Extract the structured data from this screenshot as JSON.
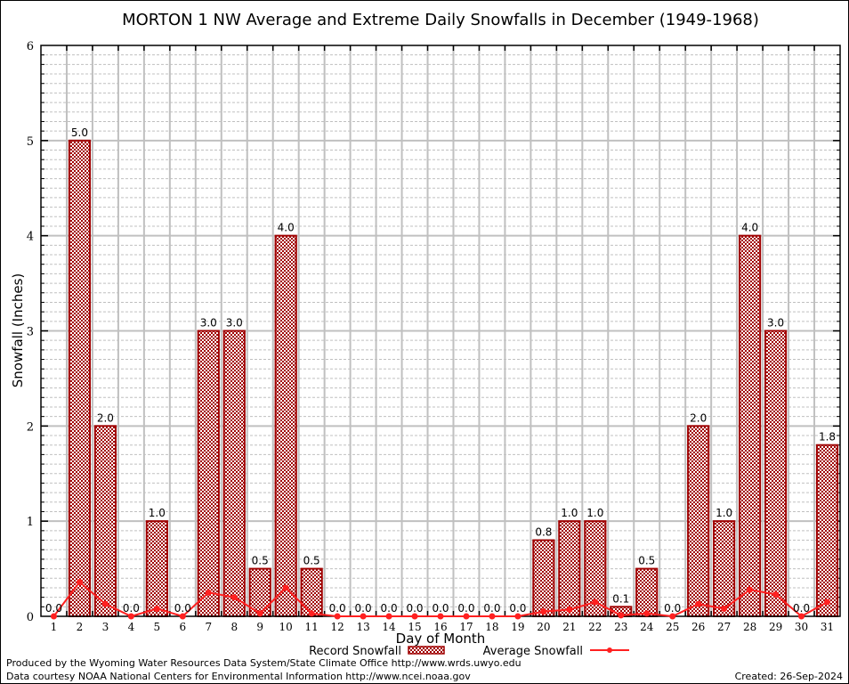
{
  "chart_data": {
    "type": "bar",
    "title": "MORTON 1 NW Average and Extreme Daily Snowfalls in December (1949-1968)",
    "xlabel": "Day of Month",
    "ylabel": "Snowfall (Inches)",
    "ylim": [
      0,
      6
    ],
    "yticks": [
      "0",
      "1",
      "2",
      "3",
      "4",
      "5",
      "6"
    ],
    "grid": true,
    "categories": [
      "1",
      "2",
      "3",
      "4",
      "5",
      "6",
      "7",
      "8",
      "9",
      "10",
      "11",
      "12",
      "13",
      "14",
      "15",
      "16",
      "17",
      "18",
      "19",
      "20",
      "21",
      "22",
      "23",
      "24",
      "25",
      "26",
      "27",
      "28",
      "29",
      "30",
      "31"
    ],
    "series": [
      {
        "name": "Record Snowfall",
        "kind": "bar",
        "color": "#a00000",
        "values": [
          0.0,
          5.0,
          2.0,
          0.0,
          1.0,
          0.0,
          3.0,
          3.0,
          0.5,
          4.0,
          0.5,
          0.0,
          0.0,
          0.0,
          0.0,
          0.0,
          0.0,
          0.0,
          0.0,
          0.8,
          1.0,
          1.0,
          0.1,
          0.5,
          0.0,
          2.0,
          1.0,
          4.0,
          3.0,
          0.0,
          1.8
        ],
        "labels": [
          "0.0",
          "5.0",
          "2.0",
          "0.0",
          "1.0",
          "0.0",
          "3.0",
          "3.0",
          "0.5",
          "4.0",
          "0.5",
          "0.0",
          "0.0",
          "0.0",
          "0.0",
          "0.0",
          "0.0",
          "0.0",
          "0.0",
          "0.8",
          "1.0",
          "1.0",
          "0.1",
          "0.5",
          "0.0",
          "2.0",
          "1.0",
          "4.0",
          "3.0",
          "0.0",
          "1.8"
        ]
      },
      {
        "name": "Average Snowfall",
        "kind": "line",
        "color": "#ff2020",
        "values": [
          0.0,
          0.36,
          0.13,
          0.0,
          0.08,
          0.0,
          0.25,
          0.2,
          0.03,
          0.3,
          0.03,
          0.0,
          0.0,
          0.0,
          0.0,
          0.0,
          0.0,
          0.0,
          0.0,
          0.05,
          0.07,
          0.15,
          0.01,
          0.03,
          0.0,
          0.13,
          0.08,
          0.28,
          0.23,
          0.0,
          0.15
        ]
      }
    ],
    "legend": {
      "placement": "bottom-center"
    }
  },
  "footer": {
    "line1": "Produced by the Wyoming Water Resources Data System/State Climate Office http://www.wrds.uwyo.edu",
    "line2": "Data courtesy NOAA National Centers for Environmental Information http://www.ncei.noaa.gov",
    "created": "Created: 26-Sep-2024"
  }
}
